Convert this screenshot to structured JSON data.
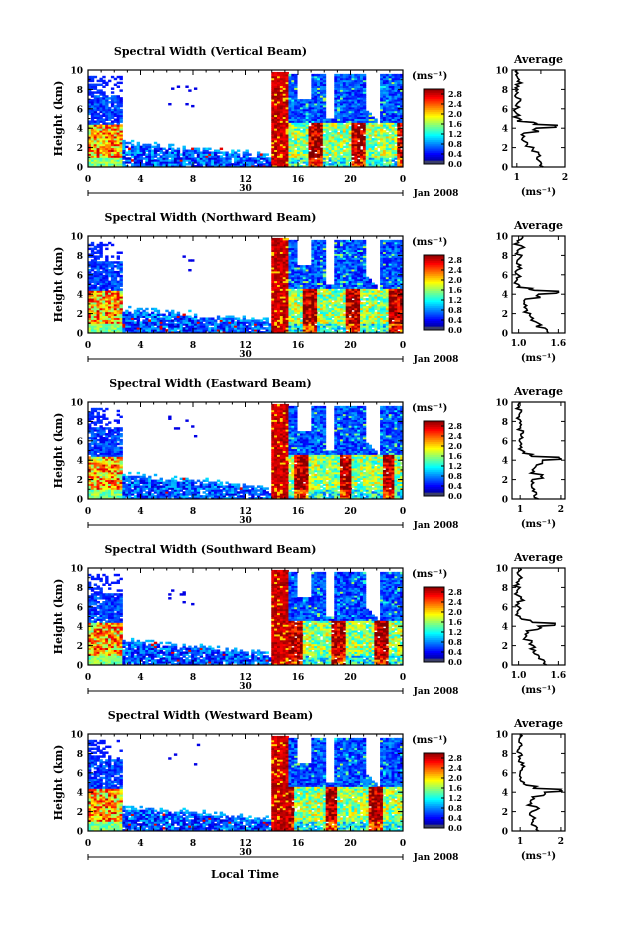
{
  "figure": {
    "xlabel": "Local Time",
    "date_label": "Jan 2008",
    "day_label": "30",
    "cb_unit": "(ms⁻¹)",
    "avg_title": "Average"
  },
  "chart_data": [
    {
      "type": "heatmap",
      "title": "Spectral Width (Vertical Beam)",
      "ylabel": "Height (km)",
      "x_ticks": [
        "0",
        "4",
        "8",
        "12",
        "16",
        "20",
        "0"
      ],
      "y_ticks": [
        "0",
        "2",
        "4",
        "6",
        "8",
        "10"
      ],
      "xlim": [
        0,
        24
      ],
      "ylim": [
        0,
        10
      ],
      "colorbar": {
        "unit": "(ms⁻¹)",
        "ticks": [
          "0.0",
          "0.4",
          "0.8",
          "1.2",
          "1.6",
          "2.0",
          "2.4",
          "2.8"
        ],
        "range": [
          0,
          3.0
        ]
      },
      "average": {
        "title": "Average",
        "xlabel": "(ms⁻¹)",
        "x_ticks": [
          "1",
          "1.5",
          "2"
        ],
        "x_tick_labels": [
          "1",
          "",
          "2"
        ],
        "xlim": [
          0.9,
          2.0
        ],
        "profile": [
          [
            1.55,
            0
          ],
          [
            1.5,
            0.5
          ],
          [
            1.42,
            1
          ],
          [
            1.45,
            1.5
          ],
          [
            1.35,
            2
          ],
          [
            1.22,
            2.5
          ],
          [
            1.12,
            3
          ],
          [
            1.15,
            3.5
          ],
          [
            1.4,
            4
          ],
          [
            1.85,
            4.3
          ],
          [
            1.35,
            4.6
          ],
          [
            1.05,
            5
          ],
          [
            1.0,
            5.5
          ],
          [
            0.98,
            6
          ],
          [
            1.0,
            6.5
          ],
          [
            1.08,
            7
          ],
          [
            0.98,
            7.5
          ],
          [
            1.02,
            8
          ],
          [
            0.98,
            8.5
          ],
          [
            1.05,
            9
          ],
          [
            0.98,
            9.5
          ],
          [
            1.0,
            10
          ]
        ]
      }
    },
    {
      "type": "heatmap",
      "title": "Spectral Width (Northward Beam)",
      "ylabel": "Height (km)",
      "x_ticks": [
        "0",
        "4",
        "8",
        "12",
        "16",
        "20",
        "0"
      ],
      "y_ticks": [
        "0",
        "2",
        "4",
        "6",
        "8",
        "10"
      ],
      "xlim": [
        0,
        24
      ],
      "ylim": [
        0,
        10
      ],
      "colorbar": {
        "unit": "(ms⁻¹)",
        "ticks": [
          "0.0",
          "0.4",
          "0.8",
          "1.2",
          "1.6",
          "2.0",
          "2.4",
          "2.8"
        ],
        "range": [
          0,
          3.0
        ]
      },
      "average": {
        "title": "Average",
        "xlabel": "(ms⁻¹)",
        "x_ticks": [
          "1.0",
          "1.6"
        ],
        "x_tick_labels": [
          "1.0",
          "1.6"
        ],
        "xlim": [
          0.9,
          1.7
        ],
        "profile": [
          [
            1.45,
            0
          ],
          [
            1.4,
            0.5
          ],
          [
            1.3,
            1
          ],
          [
            1.22,
            1.5
          ],
          [
            1.18,
            2
          ],
          [
            1.12,
            2.5
          ],
          [
            1.08,
            3
          ],
          [
            1.1,
            3.5
          ],
          [
            1.3,
            4
          ],
          [
            1.6,
            4.3
          ],
          [
            1.2,
            4.6
          ],
          [
            1.0,
            5
          ],
          [
            0.98,
            5.5
          ],
          [
            0.99,
            6
          ],
          [
            0.98,
            6.5
          ],
          [
            1.03,
            7
          ],
          [
            0.98,
            7.5
          ],
          [
            1.05,
            8
          ],
          [
            0.98,
            8.5
          ],
          [
            1.04,
            9
          ],
          [
            0.98,
            9.5
          ],
          [
            1.06,
            10
          ]
        ]
      }
    },
    {
      "type": "heatmap",
      "title": "Spectral Width (Eastward Beam)",
      "ylabel": "Height (km)",
      "x_ticks": [
        "0",
        "4",
        "8",
        "12",
        "16",
        "20",
        "0"
      ],
      "y_ticks": [
        "0",
        "2",
        "4",
        "6",
        "8",
        "10"
      ],
      "xlim": [
        0,
        24
      ],
      "ylim": [
        0,
        10
      ],
      "colorbar": {
        "unit": "(ms⁻¹)",
        "ticks": [
          "0.0",
          "0.4",
          "0.8",
          "1.2",
          "1.6",
          "2.0",
          "2.4",
          "2.8"
        ],
        "range": [
          0,
          3.0
        ]
      },
      "average": {
        "title": "Average",
        "xlabel": "(ms⁻¹)",
        "x_ticks": [
          "1",
          "2"
        ],
        "x_tick_labels": [
          "1",
          "2"
        ],
        "xlim": [
          0.8,
          2.1
        ],
        "profile": [
          [
            1.45,
            0
          ],
          [
            1.4,
            0.5
          ],
          [
            1.35,
            1
          ],
          [
            1.28,
            1.5
          ],
          [
            1.3,
            2
          ],
          [
            1.55,
            2.5
          ],
          [
            1.3,
            3
          ],
          [
            1.4,
            3.5
          ],
          [
            1.55,
            4
          ],
          [
            1.95,
            4.3
          ],
          [
            1.3,
            4.6
          ],
          [
            1.05,
            5
          ],
          [
            1.0,
            5.5
          ],
          [
            0.98,
            6
          ],
          [
            1.02,
            6.5
          ],
          [
            1.08,
            7
          ],
          [
            1.0,
            7.5
          ],
          [
            1.02,
            8
          ],
          [
            0.98,
            8.5
          ],
          [
            1.03,
            9
          ],
          [
            0.98,
            9.5
          ],
          [
            1.0,
            10
          ]
        ]
      }
    },
    {
      "type": "heatmap",
      "title": "Spectral Width (Southward Beam)",
      "ylabel": "Height (km)",
      "x_ticks": [
        "0",
        "4",
        "8",
        "12",
        "16",
        "20",
        "0"
      ],
      "y_ticks": [
        "0",
        "2",
        "4",
        "6",
        "8",
        "10"
      ],
      "xlim": [
        0,
        24
      ],
      "ylim": [
        0,
        10
      ],
      "colorbar": {
        "unit": "(ms⁻¹)",
        "ticks": [
          "0.0",
          "0.4",
          "0.8",
          "1.2",
          "1.6",
          "2.0",
          "2.4",
          "2.8"
        ],
        "range": [
          0,
          3.0
        ]
      },
      "average": {
        "title": "Average",
        "xlabel": "(ms⁻¹)",
        "x_ticks": [
          "1.0",
          "1.6"
        ],
        "x_tick_labels": [
          "1.0",
          "1.6"
        ],
        "xlim": [
          0.9,
          1.7
        ],
        "profile": [
          [
            1.42,
            0
          ],
          [
            1.38,
            0.5
          ],
          [
            1.3,
            1
          ],
          [
            1.25,
            1.5
          ],
          [
            1.22,
            2
          ],
          [
            1.2,
            2.5
          ],
          [
            1.12,
            3
          ],
          [
            1.12,
            3.5
          ],
          [
            1.3,
            4
          ],
          [
            1.55,
            4.3
          ],
          [
            1.18,
            4.6
          ],
          [
            1.02,
            5
          ],
          [
            0.98,
            5.5
          ],
          [
            1.0,
            6
          ],
          [
            0.98,
            6.5
          ],
          [
            1.04,
            7
          ],
          [
            0.98,
            7.5
          ],
          [
            1.02,
            8
          ],
          [
            0.97,
            8.5
          ],
          [
            1.05,
            9
          ],
          [
            0.98,
            9.5
          ],
          [
            1.02,
            10
          ]
        ]
      }
    },
    {
      "type": "heatmap",
      "title": "Spectral Width (Westward Beam)",
      "ylabel": "Height (km)",
      "x_ticks": [
        "0",
        "4",
        "8",
        "12",
        "16",
        "20",
        "0"
      ],
      "y_ticks": [
        "0",
        "2",
        "4",
        "6",
        "8",
        "10"
      ],
      "xlim": [
        0,
        24
      ],
      "ylim": [
        0,
        10
      ],
      "colorbar": {
        "unit": "(ms⁻¹)",
        "ticks": [
          "0.0",
          "0.4",
          "0.8",
          "1.2",
          "1.6",
          "2.0",
          "2.4",
          "2.8"
        ],
        "range": [
          0,
          3.0
        ]
      },
      "average": {
        "title": "Average",
        "xlabel": "(ms⁻¹)",
        "x_ticks": [
          "1",
          "2"
        ],
        "x_tick_labels": [
          "1",
          "2"
        ],
        "xlim": [
          0.8,
          2.1
        ],
        "profile": [
          [
            1.45,
            0
          ],
          [
            1.38,
            0.5
          ],
          [
            1.32,
            1
          ],
          [
            1.3,
            1.5
          ],
          [
            1.28,
            2
          ],
          [
            1.4,
            2.5
          ],
          [
            1.25,
            3
          ],
          [
            1.3,
            3.5
          ],
          [
            1.6,
            4
          ],
          [
            2.0,
            4.3
          ],
          [
            1.4,
            4.6
          ],
          [
            1.1,
            5
          ],
          [
            1.02,
            5.5
          ],
          [
            1.0,
            6
          ],
          [
            1.05,
            6.5
          ],
          [
            1.08,
            7
          ],
          [
            1.0,
            7.5
          ],
          [
            1.02,
            8
          ],
          [
            0.98,
            8.5
          ],
          [
            1.03,
            9
          ],
          [
            0.98,
            9.5
          ],
          [
            1.0,
            10
          ]
        ]
      }
    }
  ]
}
